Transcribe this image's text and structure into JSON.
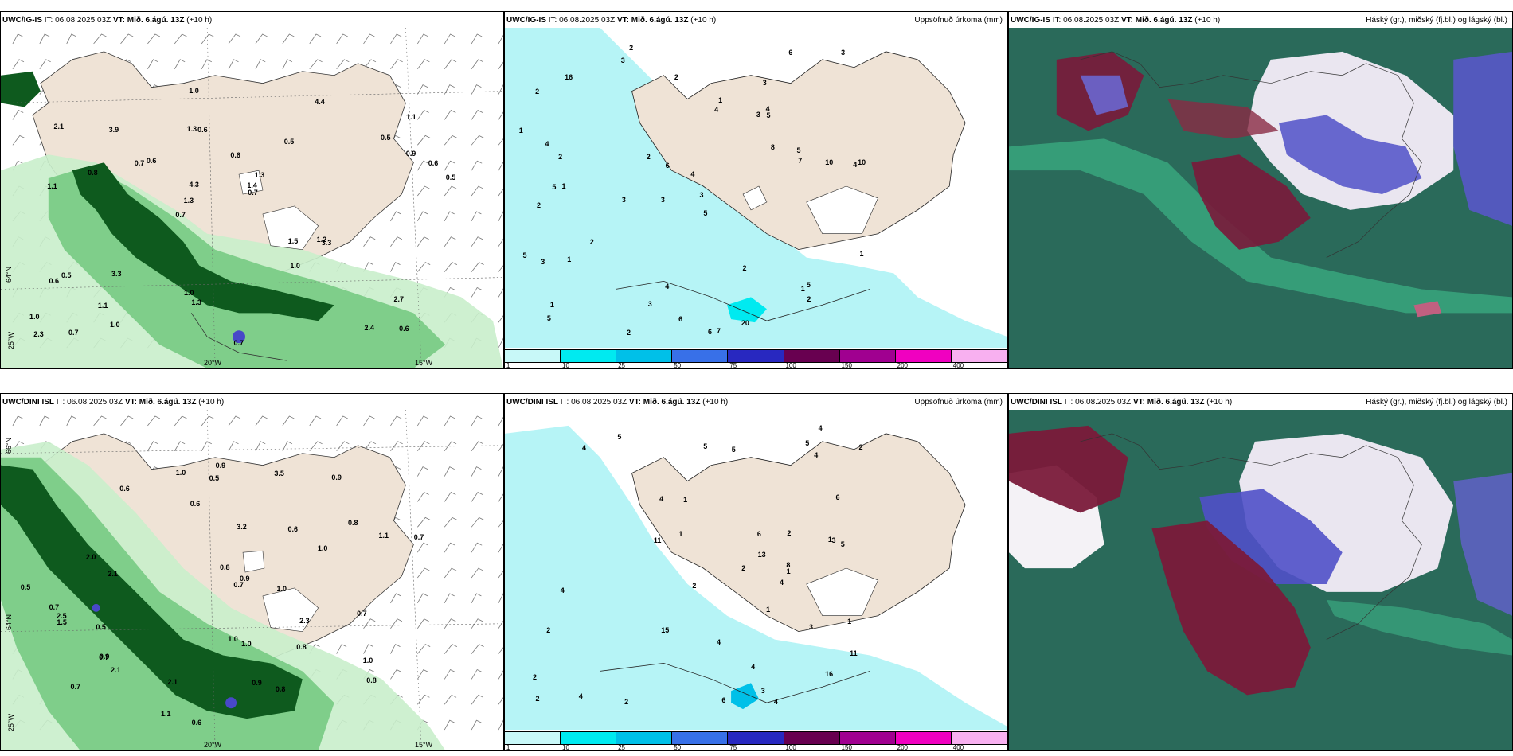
{
  "panels": [
    {
      "id": "top-left",
      "model": "UWC/IG-IS",
      "it_label": "IT:",
      "it": "06.08.2025 03Z",
      "vt_label": "VT:",
      "vt": "Mið. 6.ágú. 13Z",
      "lead": "(+10 h)",
      "right_title": ""
    },
    {
      "id": "top-middle",
      "model": "UWC/IG-IS",
      "it_label": "IT:",
      "it": "06.08.2025 03Z",
      "vt_label": "VT:",
      "vt": "Mið. 6.ágú. 13Z",
      "lead": "(+10 h)",
      "right_title": "Uppsöfnuð úrkoma (mm)"
    },
    {
      "id": "top-right",
      "model": "UWC/IG-IS",
      "it_label": "IT:",
      "it": "06.08.2025 03Z",
      "vt_label": "VT:",
      "vt": "Mið. 6.ágú. 13Z",
      "lead": "(+10 h)",
      "right_title": "Háský (gr.), miðský (fj.bl.) og lágský (bl.)"
    },
    {
      "id": "bottom-left",
      "model": "UWC/DINI ISL",
      "it_label": "IT:",
      "it": "06.08.2025 03Z",
      "vt_label": "VT:",
      "vt": "Mið. 6.ágú. 13Z",
      "lead": "(+10 h)",
      "right_title": ""
    },
    {
      "id": "bottom-middle",
      "model": "UWC/DINI ISL",
      "it_label": "IT:",
      "it": "06.08.2025 03Z",
      "vt_label": "VT:",
      "vt": "Mið. 6.ágú. 13Z",
      "lead": "(+10 h)",
      "right_title": "Uppsöfnuð úrkoma (mm)"
    },
    {
      "id": "bottom-right",
      "model": "UWC/DINI ISL",
      "it_label": "IT:",
      "it": "06.08.2025 03Z",
      "vt_label": "VT:",
      "vt": "Mið. 6.ágú. 13Z",
      "lead": "(+10 h)",
      "right_title": "Háský (gr.), miðský (fj.bl.) og lágský (bl.)"
    }
  ],
  "grid_labels": {
    "lat66": "66°N",
    "lat64": "64°N",
    "lon25": "25°W",
    "lon20": "20°W",
    "lon15": "15°W"
  },
  "colorbar": {
    "ticks": [
      "1",
      "10",
      "25",
      "50",
      "75",
      "100",
      "150",
      "200",
      "400"
    ],
    "colors": [
      "#c8f8f8",
      "#00eaf0",
      "#00c0e8",
      "#3870e8",
      "#2828c0",
      "#680050",
      "#a00090",
      "#f000c0",
      "#f8b0f0"
    ]
  },
  "colors": {
    "land": "#efe3d6",
    "rain_light": "#c9eecb",
    "rain_mid": "#7fce8a",
    "rain_dark": "#0e5a1e",
    "precip_light": "#b6f4f6",
    "cloud_base": "#2a6a5a",
    "cloud_high": "#7a1a3a",
    "cloud_mid": "#5050c8"
  },
  "wind_labels_top": [
    "0.6",
    "1.1",
    "1.1",
    "0.7",
    "0.5",
    "0.7",
    "1.3",
    "0.6",
    "0.5",
    "0.6",
    "1.0",
    "1.1",
    "0.6",
    "1.3",
    "3.3",
    "2.1",
    "1.0",
    "0.5",
    "1.5",
    "0.9",
    "1.3",
    "1.0",
    "4.3",
    "3.9",
    "4.4",
    "3.3",
    "2.4",
    "2.7",
    "1.2",
    "0.7",
    "0.7",
    "0.8",
    "1.0",
    "1.0",
    "0.6",
    "1.4",
    "2.3",
    "1.3",
    "0.7",
    "0.6",
    "0.5"
  ],
  "wind_labels_bottom": [
    "0.7",
    "0.9",
    "0.6",
    "0.8",
    "1.0",
    "2.1",
    "0.5",
    "0.9",
    "1.1",
    "1.0",
    "0.7",
    "0.9",
    "0.8",
    "0.7",
    "0.6",
    "1.0",
    "0.8",
    "0.5",
    "0.7",
    "1.1",
    "0.8",
    "0.5",
    "0.6",
    "0.9",
    "0.8",
    "2.1",
    "2.5",
    "3.5",
    "3.2",
    "2.3",
    "2.0",
    "2.1",
    "0.9",
    "1.0",
    "1.0",
    "1.5",
    "0.7",
    "1.0",
    "0.6",
    "0.7"
  ],
  "precip_labels_top": [
    "2",
    "3",
    "4",
    "3",
    "5",
    "1",
    "2",
    "3",
    "2",
    "4",
    "4",
    "5",
    "3",
    "3",
    "6",
    "7",
    "4",
    "6",
    "8",
    "2",
    "2",
    "5",
    "10",
    "10",
    "5",
    "4",
    "6",
    "7",
    "5",
    "3",
    "1",
    "1",
    "1",
    "2",
    "2",
    "1",
    "5",
    "3",
    "3",
    "2",
    "1",
    "2",
    "20",
    "16",
    "6",
    "5",
    "2",
    "4",
    "1",
    "3"
  ],
  "precip_labels_bottom": [
    "1",
    "2",
    "4",
    "4",
    "5",
    "2",
    "6",
    "2",
    "3",
    "5",
    "4",
    "2",
    "4",
    "5",
    "6",
    "8",
    "11",
    "2",
    "4",
    "5",
    "4",
    "1",
    "1",
    "2",
    "1",
    "1",
    "4",
    "2",
    "6",
    "4",
    "3",
    "16",
    "15",
    "13",
    "11",
    "4",
    "5",
    "1",
    "2",
    "3",
    "4"
  ]
}
